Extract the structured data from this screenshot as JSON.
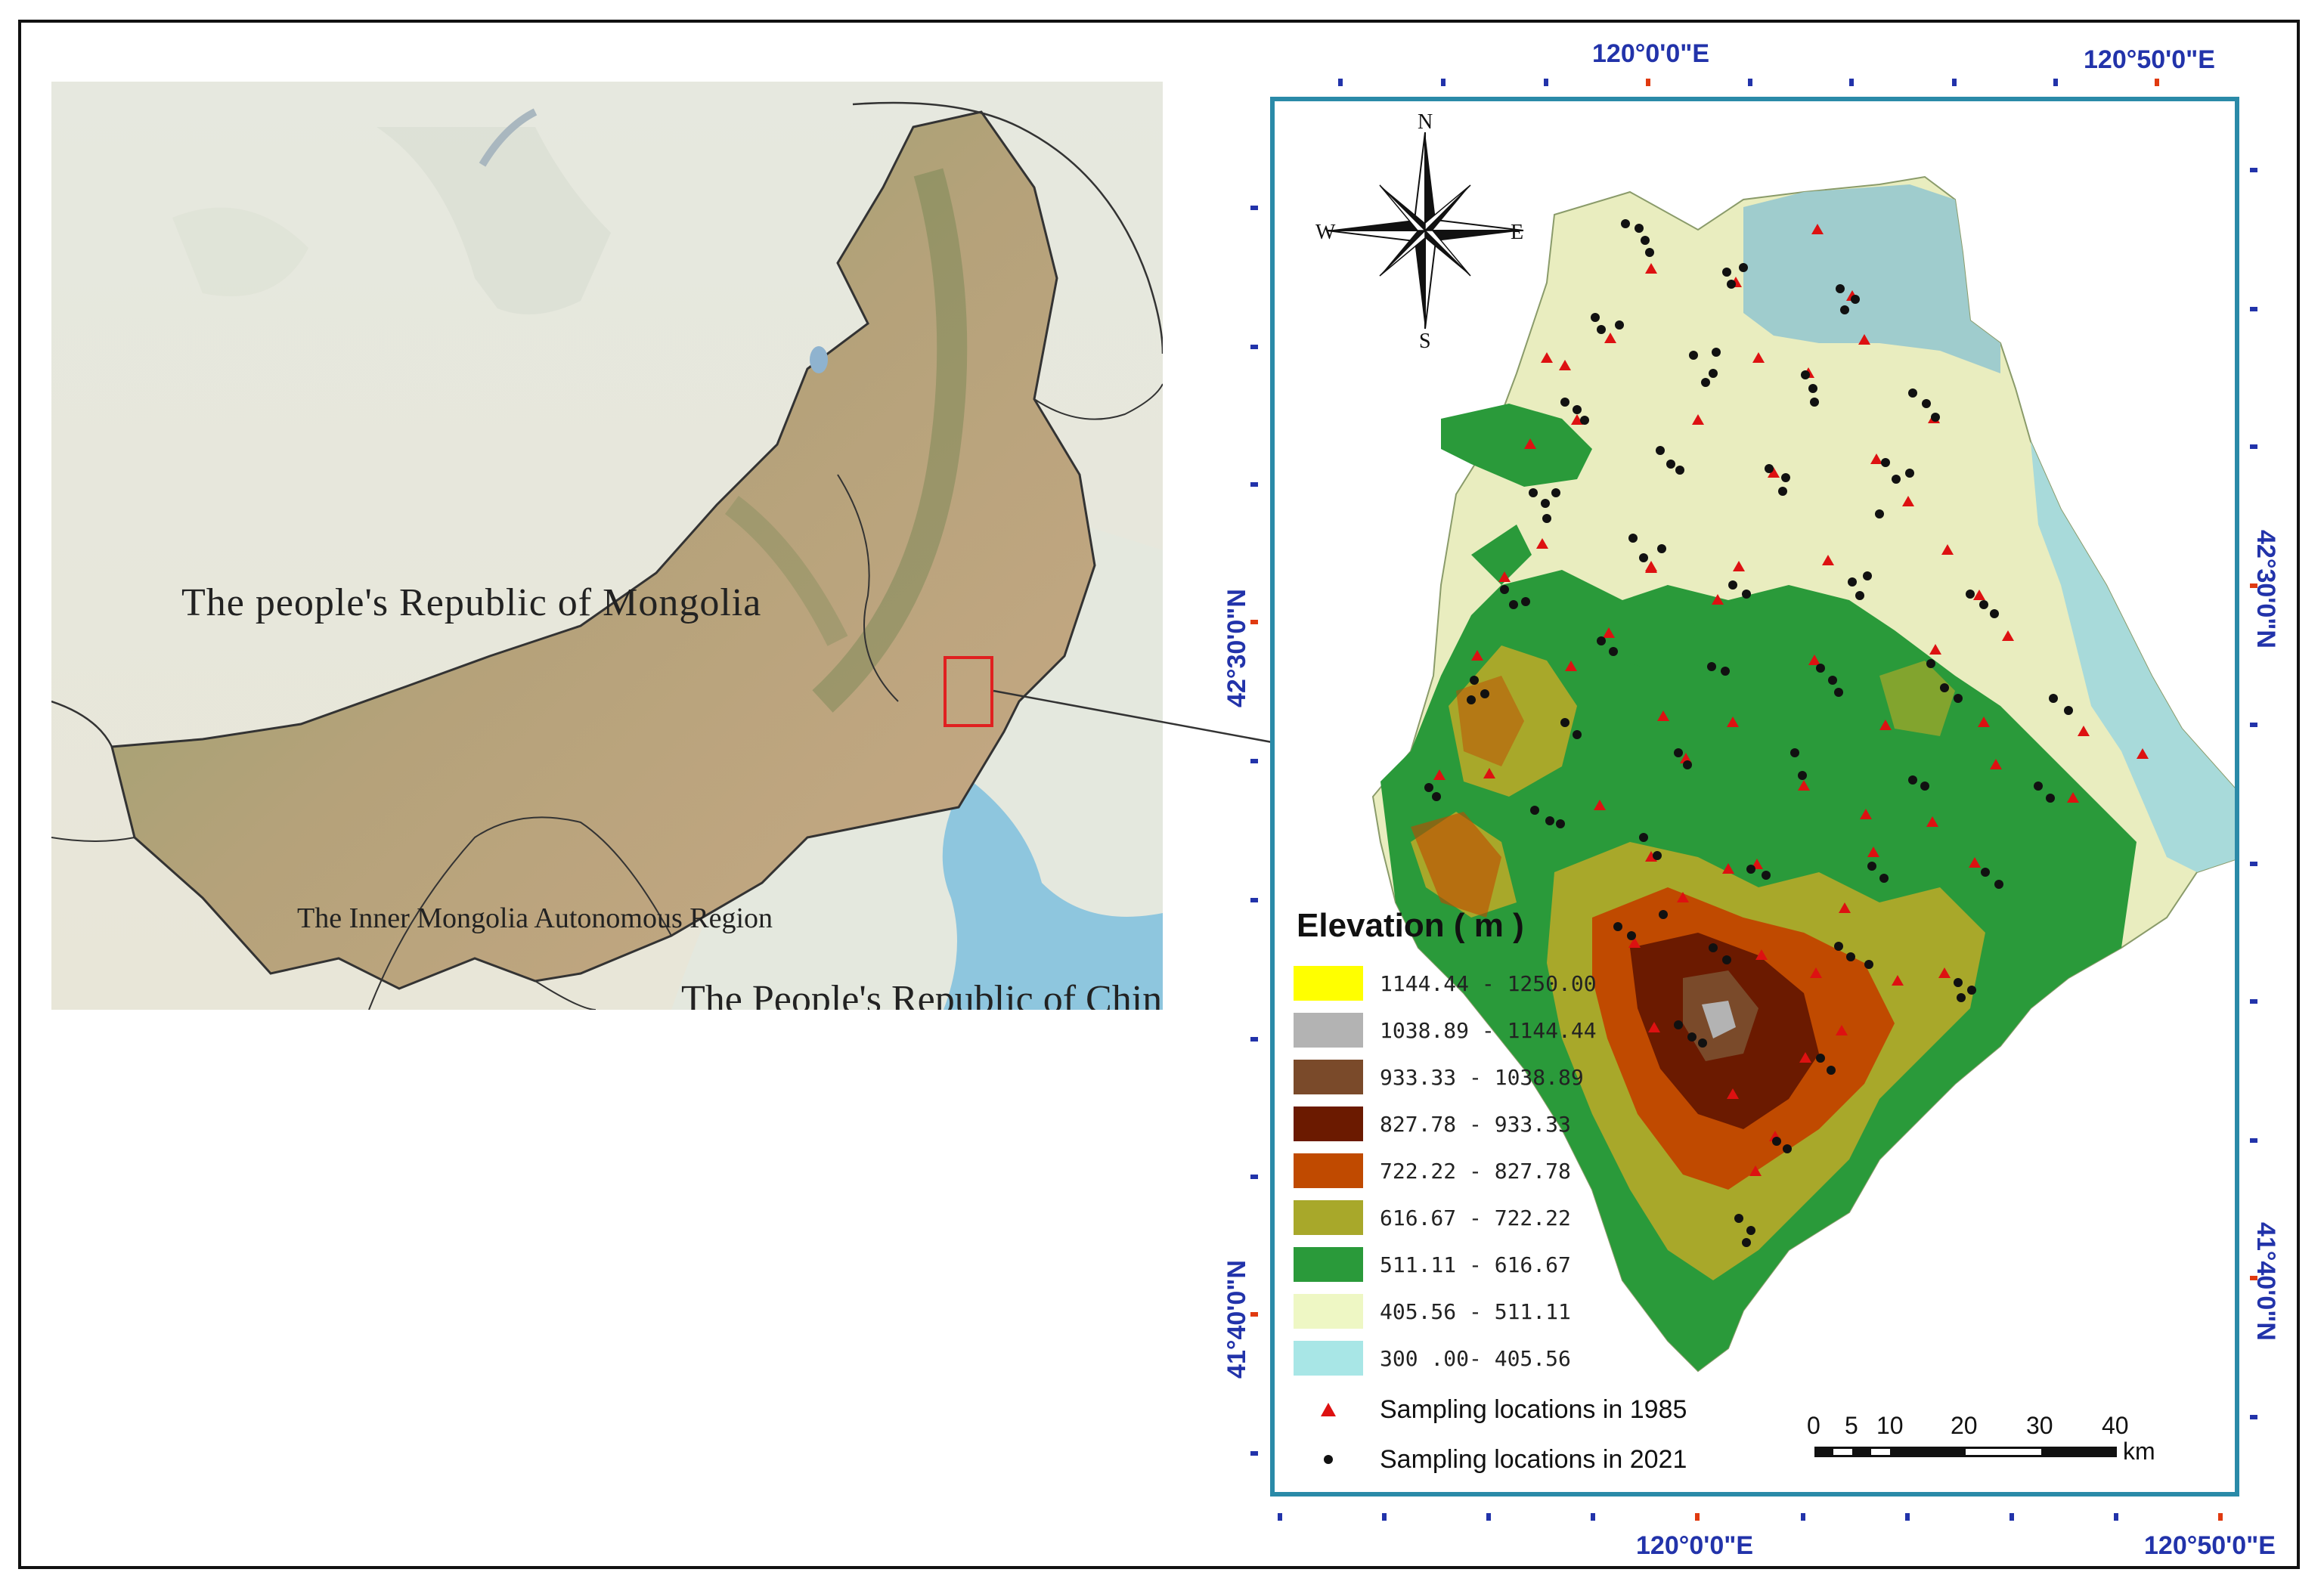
{
  "overview_map": {
    "labels": {
      "mongolia": "The people's Republic of Mongolia",
      "inner_mongolia": "The Inner Mongolia Autonomous Region",
      "china": "The People's Republic of China"
    }
  },
  "detail_map": {
    "coords": {
      "top_lon_1": "120°0'0\"E",
      "top_lon_2": "120°50'0\"E",
      "bottom_lon_1": "120°0'0\"E",
      "bottom_lon_2": "120°50'0\"E",
      "left_lat_1": "42°30'0\"N",
      "left_lat_2": "41°40'0\"N",
      "right_lat_1": "42°30'0\"N",
      "right_lat_2": "41°40'0\"N"
    },
    "compass": {
      "n": "N",
      "s": "S",
      "e": "E",
      "w": "W"
    },
    "legend": {
      "title": "Elevation ( m )",
      "classes": [
        {
          "label": "1144.44 - 1250.00",
          "color": "#ffff00"
        },
        {
          "label": "1038.89 - 1144.44",
          "color": "#b3b3b3"
        },
        {
          "label": "933.33 - 1038.89",
          "color": "#7a4a2a"
        },
        {
          "label": "827.78 - 933.33",
          "color": "#6b1a00"
        },
        {
          "label": "722.22 - 827.78",
          "color": "#c04a00"
        },
        {
          "label": "616.67 - 722.22",
          "color": "#a8a82a"
        },
        {
          "label": "511.11 - 616.67",
          "color": "#2a9a3a"
        },
        {
          "label": "405.56 - 511.11",
          "color": "#eef7c4"
        },
        {
          "label": "300 .00- 405.56",
          "color": "#a8e6e6"
        }
      ],
      "points": [
        {
          "label": "Sampling locations in 1985",
          "symbol": "red-triangle",
          "color": "#dd1111"
        },
        {
          "label": "Sampling locations in 2021",
          "symbol": "black-dot",
          "color": "#111111"
        }
      ]
    },
    "scale_bar": {
      "ticks": [
        "0",
        "5",
        "10",
        "20",
        "30",
        "40"
      ],
      "unit": "km"
    }
  }
}
